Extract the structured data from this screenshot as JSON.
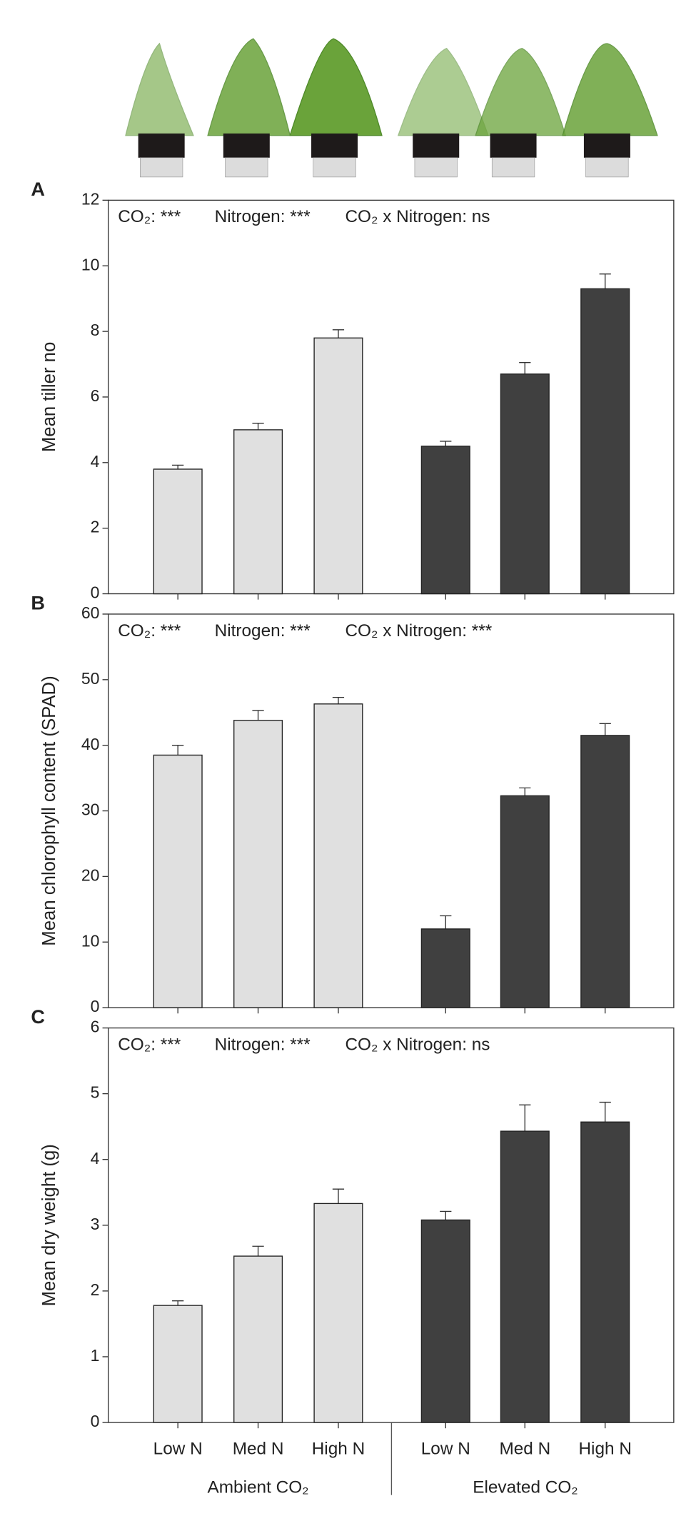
{
  "chart_data": [
    {
      "type": "bar",
      "panel_label": "A",
      "ylabel": "Mean tiller no",
      "annotations": [
        "CO₂: ***",
        "Nitrogen: ***",
        "CO₂ x Nitrogen: ns"
      ],
      "categories": [
        null,
        null,
        null,
        null,
        null,
        null
      ],
      "values": [
        3.8,
        5.0,
        7.8,
        4.5,
        6.7,
        9.3
      ],
      "errors": [
        0.12,
        0.2,
        0.25,
        0.15,
        0.35,
        0.45
      ],
      "colors": [
        "#e0e0e0",
        "#e0e0e0",
        "#e0e0e0",
        "#404040",
        "#404040",
        "#404040"
      ],
      "ylim": [
        0,
        12
      ],
      "yticks": [
        0,
        2,
        4,
        6,
        8,
        10,
        12
      ]
    },
    {
      "type": "bar",
      "panel_label": "B",
      "ylabel": "Mean chlorophyll content (SPAD)",
      "annotations": [
        "CO₂: ***",
        "Nitrogen: ***",
        "CO₂ x Nitrogen: ***"
      ],
      "categories": [
        null,
        null,
        null,
        null,
        null,
        null
      ],
      "values": [
        38.5,
        43.8,
        46.3,
        12,
        32.3,
        41.5
      ],
      "errors": [
        1.5,
        1.5,
        1,
        2,
        1.2,
        1.8
      ],
      "colors": [
        "#e0e0e0",
        "#e0e0e0",
        "#e0e0e0",
        "#404040",
        "#404040",
        "#404040"
      ],
      "ylim": [
        0,
        60
      ],
      "yticks": [
        0,
        10,
        20,
        30,
        40,
        50,
        60
      ]
    },
    {
      "type": "bar",
      "panel_label": "C",
      "ylabel": "Mean dry weight (g)",
      "annotations": [
        "CO₂: ***",
        "Nitrogen: ***",
        "CO₂ x Nitrogen: ns"
      ],
      "categories": [
        "Low N",
        "Med N",
        "High N",
        "Low N",
        "Med N",
        "High N"
      ],
      "groups": [
        "Ambient CO₂",
        "Elevated CO₂"
      ],
      "values": [
        1.78,
        2.53,
        3.33,
        3.08,
        4.43,
        4.57
      ],
      "errors": [
        0.07,
        0.15,
        0.22,
        0.13,
        0.4,
        0.3
      ],
      "colors": [
        "#e0e0e0",
        "#e0e0e0",
        "#e0e0e0",
        "#404040",
        "#404040",
        "#404040"
      ],
      "ylim": [
        0,
        6
      ],
      "yticks": [
        0,
        1,
        2,
        3,
        4,
        5,
        6
      ]
    }
  ]
}
